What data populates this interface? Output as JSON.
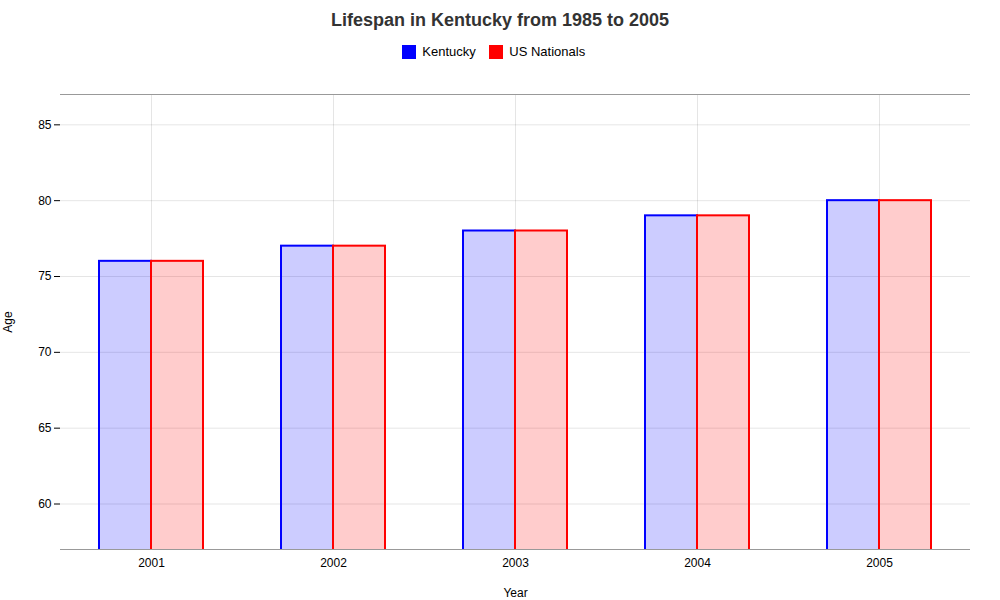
{
  "chart_data": {
    "type": "bar",
    "title": "Lifespan in Kentucky from 1985 to 2005",
    "xlabel": "Year",
    "ylabel": "Age",
    "categories": [
      "2001",
      "2002",
      "2003",
      "2004",
      "2005"
    ],
    "series": [
      {
        "name": "Kentucky",
        "color": "#0000ff",
        "values": [
          76,
          77,
          78,
          79,
          80
        ]
      },
      {
        "name": "US Nationals",
        "color": "#ff0000",
        "values": [
          76,
          77,
          78,
          79,
          80
        ]
      }
    ],
    "ylim": [
      57,
      87
    ],
    "yticks": [
      60,
      65,
      70,
      75,
      80,
      85
    ],
    "grid": true,
    "legend": "top"
  }
}
